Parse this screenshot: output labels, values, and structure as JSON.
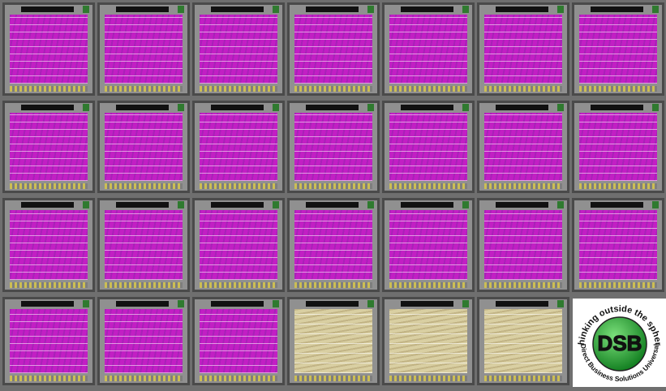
{
  "logo": {
    "tagline": "Thinking outside the sphere",
    "initials": "DSB",
    "company": "Direct Business Solutions Universal"
  }
}
